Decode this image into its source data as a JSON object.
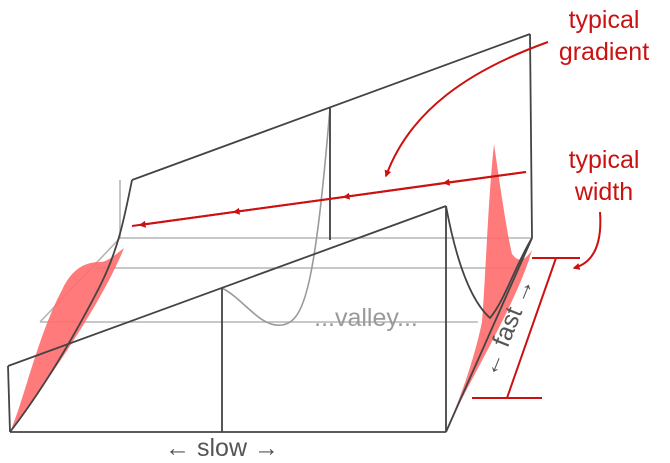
{
  "labels": {
    "gradient_line1": "typical",
    "gradient_line2": "gradient",
    "width_line1": "typical",
    "width_line2": "width",
    "valley": "...valley...",
    "fast": "← fast →",
    "slow": "← slow →"
  },
  "colors": {
    "surface_line": "#444444",
    "hidden_line": "#b5b5b5",
    "annotation": "#cc1111",
    "fill_shape": "#ff6b6b",
    "valley_text": "#9a9a9a"
  }
}
